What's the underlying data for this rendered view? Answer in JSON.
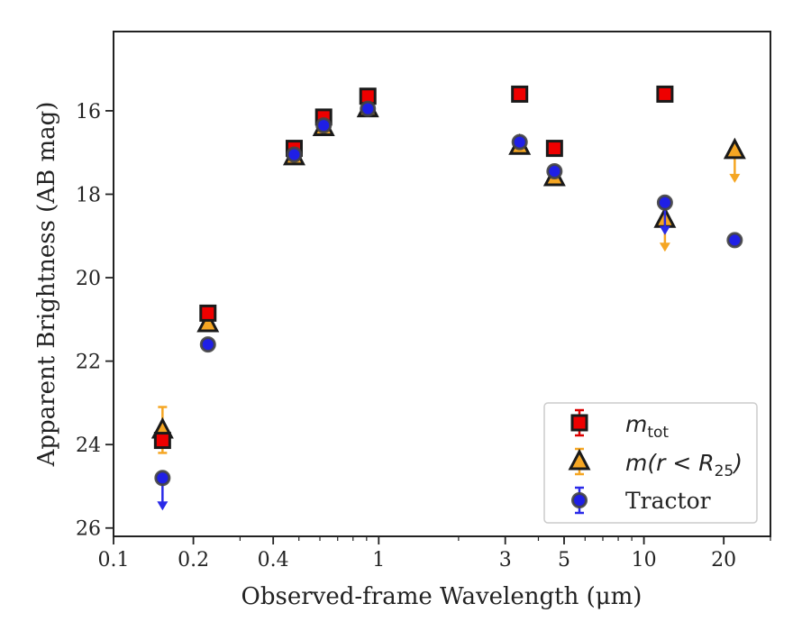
{
  "chart_data": {
    "type": "scatter",
    "title": "",
    "xlabel": "Observed-frame Wavelength (μm)",
    "ylabel": "Apparent Brightness (AB mag)",
    "x_scale": "log",
    "xlim": [
      0.1,
      30
    ],
    "ylim": [
      26.2,
      14.1
    ],
    "y_inverted": true,
    "x_ticks": [
      {
        "value": 0.1,
        "label": "0.1"
      },
      {
        "value": 0.2,
        "label": "0.2"
      },
      {
        "value": 0.4,
        "label": "0.4"
      },
      {
        "value": 1,
        "label": "1"
      },
      {
        "value": 3,
        "label": "3"
      },
      {
        "value": 5,
        "label": "5"
      },
      {
        "value": 10,
        "label": "10"
      },
      {
        "value": 20,
        "label": "20"
      }
    ],
    "y_ticks": [
      {
        "value": 16,
        "label": "16"
      },
      {
        "value": 18,
        "label": "18"
      },
      {
        "value": 20,
        "label": "20"
      },
      {
        "value": 22,
        "label": "22"
      },
      {
        "value": 24,
        "label": "24"
      },
      {
        "value": 26,
        "label": "26"
      }
    ],
    "grid": false,
    "legend_position": "lower-right",
    "series": [
      {
        "name": "m_tot",
        "marker": "square",
        "color": "#ee0000",
        "error_color": "#dd0000",
        "points": [
          {
            "x": 0.153,
            "y": 23.9,
            "err": 0.15
          },
          {
            "x": 0.227,
            "y": 20.85,
            "err": 0.05
          },
          {
            "x": 0.48,
            "y": 16.9,
            "err": 0.05
          },
          {
            "x": 0.62,
            "y": 16.15,
            "err": 0.05
          },
          {
            "x": 0.91,
            "y": 15.65,
            "err": 0.05
          },
          {
            "x": 3.4,
            "y": 15.6,
            "err": 0.03
          },
          {
            "x": 4.6,
            "y": 16.9,
            "err": 0.03
          },
          {
            "x": 12.0,
            "y": 15.6,
            "err": 0.03
          }
        ]
      },
      {
        "name": "m(r < R_25)",
        "marker": "triangle",
        "color": "#f5a623",
        "error_color": "#f5a623",
        "points": [
          {
            "x": 0.153,
            "y": 23.65,
            "err": 0.55
          },
          {
            "x": 0.227,
            "y": 21.1,
            "err": 0.05
          },
          {
            "x": 0.48,
            "y": 17.1,
            "err": 0.05
          },
          {
            "x": 0.62,
            "y": 16.4,
            "err": 0.05
          },
          {
            "x": 0.91,
            "y": 15.95,
            "err": 0.05
          },
          {
            "x": 3.4,
            "y": 16.85,
            "err": 0.03
          },
          {
            "x": 4.6,
            "y": 17.6,
            "err": 0.03
          },
          {
            "x": 12.0,
            "y": 18.6,
            "upper_limit": true
          },
          {
            "x": 22.0,
            "y": 16.95,
            "upper_limit": true
          }
        ]
      },
      {
        "name": "Tractor",
        "marker": "circle",
        "color": "#1f1fe6",
        "error_color": "#2a2ae8",
        "points": [
          {
            "x": 0.153,
            "y": 24.8,
            "upper_limit": true
          },
          {
            "x": 0.227,
            "y": 21.6,
            "err": 0.05
          },
          {
            "x": 0.48,
            "y": 17.05,
            "err": 0.05
          },
          {
            "x": 0.62,
            "y": 16.35,
            "err": 0.05
          },
          {
            "x": 0.91,
            "y": 15.95,
            "err": 0.05
          },
          {
            "x": 3.4,
            "y": 16.75,
            "err": 0.03
          },
          {
            "x": 4.6,
            "y": 17.45,
            "err": 0.1
          },
          {
            "x": 12.0,
            "y": 18.2,
            "upper_limit": true
          },
          {
            "x": 22.0,
            "y": 19.1,
            "err": 0.05
          }
        ]
      }
    ]
  },
  "legend": {
    "entries": [
      {
        "base": "m",
        "sub": "tot"
      },
      {
        "prefix": "m(r < R",
        "sub": "25",
        "suffix": ")"
      },
      {
        "label": "Tractor"
      }
    ]
  }
}
